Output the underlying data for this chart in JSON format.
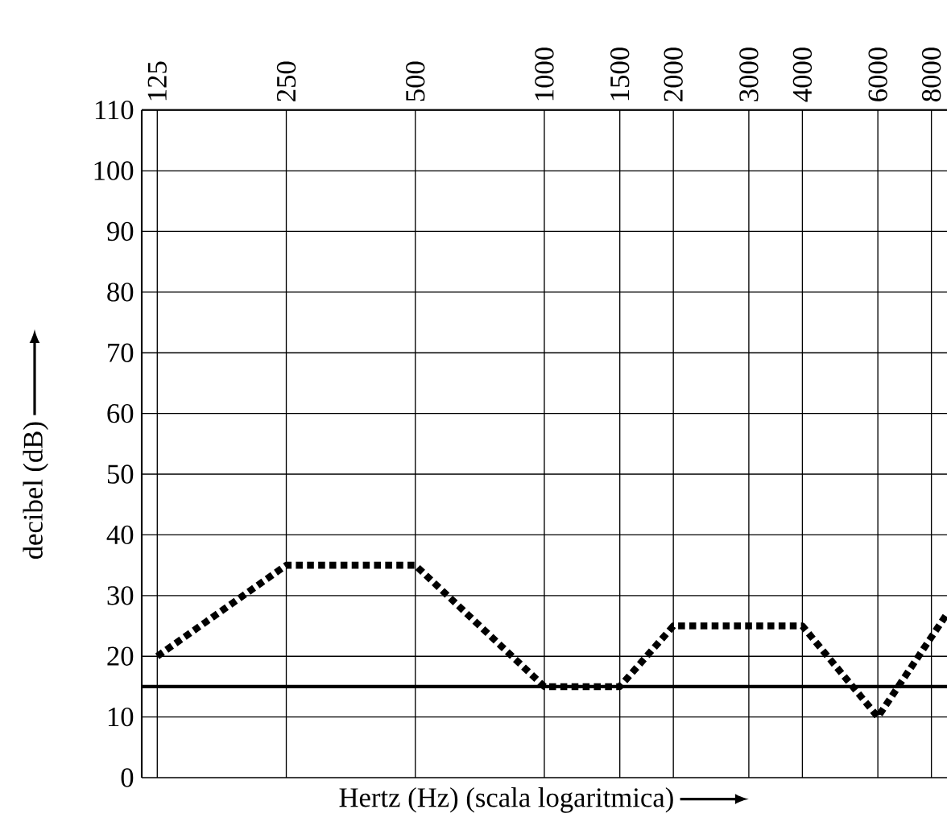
{
  "chart_data": {
    "type": "line",
    "xlabel": "Hertz (Hz) (scala logaritmica)",
    "ylabel": "decibel (dB)",
    "log": "x",
    "x": [
      125,
      250,
      500,
      1000,
      1500,
      2000,
      4000,
      6000,
      8700
    ],
    "series": [
      {
        "color": "#000000",
        "values": [
          20,
          35,
          35,
          15,
          15,
          25,
          25,
          10,
          27
        ]
      }
    ],
    "xlim": [
      115,
      8700
    ],
    "xticks": [
      125,
      250,
      500,
      1000,
      1500,
      2000,
      3000,
      4000,
      6000,
      8000
    ],
    "ylim": [
      0,
      110
    ],
    "yticks": [
      0,
      10,
      20,
      30,
      40,
      50,
      60,
      70,
      80,
      90,
      100,
      110
    ],
    "grid": true,
    "line_style": "dotted",
    "marker": "none",
    "ref_lines": [
      {
        "axis": "y",
        "value": 15,
        "color": "#000000"
      }
    ]
  }
}
